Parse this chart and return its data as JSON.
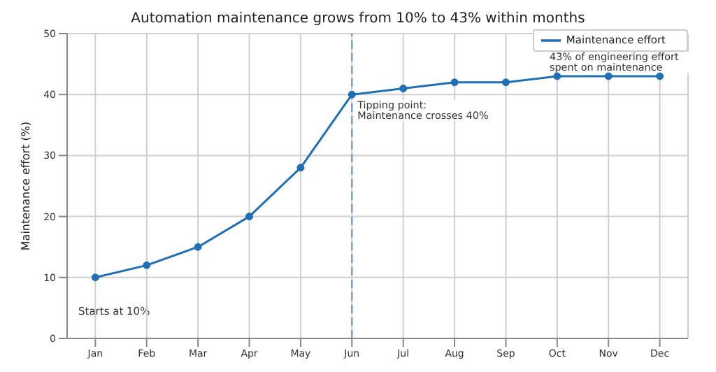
{
  "chart_data": {
    "type": "line",
    "title": "Automation maintenance grows from 10% to 43% within months",
    "ylabel": "Maintenance effort (%)",
    "categories": [
      "Jan",
      "Feb",
      "Mar",
      "Apr",
      "May",
      "Jun",
      "Jul",
      "Aug",
      "Sep",
      "Oct",
      "Nov",
      "Dec"
    ],
    "series": [
      {
        "name": "Maintenance effort",
        "color": "#1f6fb4",
        "values": [
          10,
          12,
          15,
          20,
          28,
          40,
          41,
          42,
          42,
          43,
          43,
          43
        ]
      }
    ],
    "ylim": [
      0,
      50
    ],
    "yticks": [
      0,
      10,
      20,
      30,
      40,
      50
    ],
    "grid": true,
    "legend": "top right",
    "marker": "circle",
    "line_style": "solid",
    "ref_lines": [
      {
        "axis": "x",
        "value": "Jun",
        "color": "#5b8fc7",
        "line_style": "dashed"
      }
    ],
    "annotations": [
      "Starts at 10%",
      {
        "text": "Tipping point:\nMaintenance crosses 40%",
        "x": "Jun",
        "y": 40
      },
      {
        "text": "43% of engineering effort\nspent on maintenance",
        "x": "Nov",
        "y": 43
      }
    ]
  }
}
